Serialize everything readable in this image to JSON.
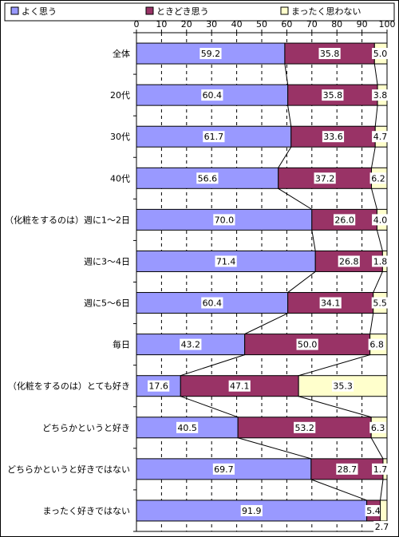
{
  "chart_data": {
    "type": "bar",
    "stacked": true,
    "orientation": "horizontal",
    "xlim": [
      0,
      100
    ],
    "xticks": [
      0,
      10,
      20,
      30,
      40,
      50,
      60,
      70,
      80,
      90,
      100
    ],
    "legend_position": "top",
    "categories": [
      "全体",
      "20代",
      "30代",
      "40代",
      "（化粧をするのは）週に1～2日",
      "週に3～4日",
      "週に5～6日",
      "毎日",
      "（化粧をするのは）とても好き",
      "どちらかというと好き",
      "どちらかというと好きではない",
      "まったく好きではない"
    ],
    "series": [
      {
        "name": "よく思う",
        "color": "#9999ff",
        "values": [
          59.2,
          60.4,
          61.7,
          56.6,
          70.0,
          71.4,
          60.4,
          43.2,
          17.6,
          40.5,
          69.7,
          91.9
        ],
        "labels": [
          "59.2",
          "60.4",
          "61.7",
          "56.6",
          "70.0",
          "71.4",
          "60.4",
          "43.2",
          "17.6",
          "40.5",
          "69.7",
          "91.9"
        ]
      },
      {
        "name": "ときどき思う",
        "color": "#993366",
        "values": [
          35.8,
          35.8,
          33.6,
          37.2,
          26.0,
          26.8,
          34.1,
          50.0,
          47.1,
          53.2,
          28.7,
          5.4
        ],
        "labels": [
          "35.8",
          "35.8",
          "33.6",
          "37.2",
          "26.0",
          "26.8",
          "34.1",
          "50.0",
          "47.1",
          "53.2",
          "28.7",
          "5.4"
        ]
      },
      {
        "name": "まったく思わない",
        "color": "#ffffcc",
        "values": [
          5.0,
          3.8,
          4.7,
          6.2,
          4.0,
          1.8,
          5.5,
          6.8,
          35.3,
          6.3,
          1.7,
          2.7
        ],
        "labels": [
          "5.0",
          "3.8",
          "4.7",
          "6.2",
          "4.0",
          "1.8",
          "5.5",
          "6.8",
          "35.3",
          "6.3",
          "1.7",
          "2.7"
        ]
      }
    ]
  }
}
